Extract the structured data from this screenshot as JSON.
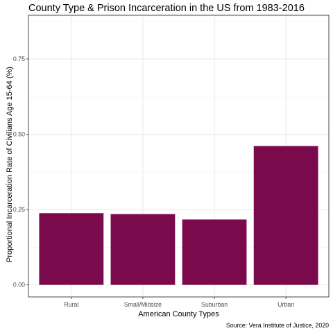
{
  "chart_data": {
    "type": "bar",
    "title": "County Type & Prison Incarceration in the US from 1983-2016",
    "xlabel": "American County Types",
    "ylabel": "Proportional Incarceration Rate of Civilians Age 15-64 (%)",
    "caption": "Source: Vera Institute of Justice, 2020",
    "categories": [
      "Rural",
      "Small/Midsize",
      "Suburban",
      "Urban"
    ],
    "values": [
      0.238,
      0.235,
      0.217,
      0.461
    ],
    "ylim": [
      -0.04,
      0.895
    ],
    "yticks": [
      0.0,
      0.25,
      0.5,
      0.75
    ],
    "ytick_labels": [
      "0.00",
      "0.25",
      "0.50",
      "0.75"
    ],
    "grid": true,
    "bar_color": "#7b0a4d"
  }
}
